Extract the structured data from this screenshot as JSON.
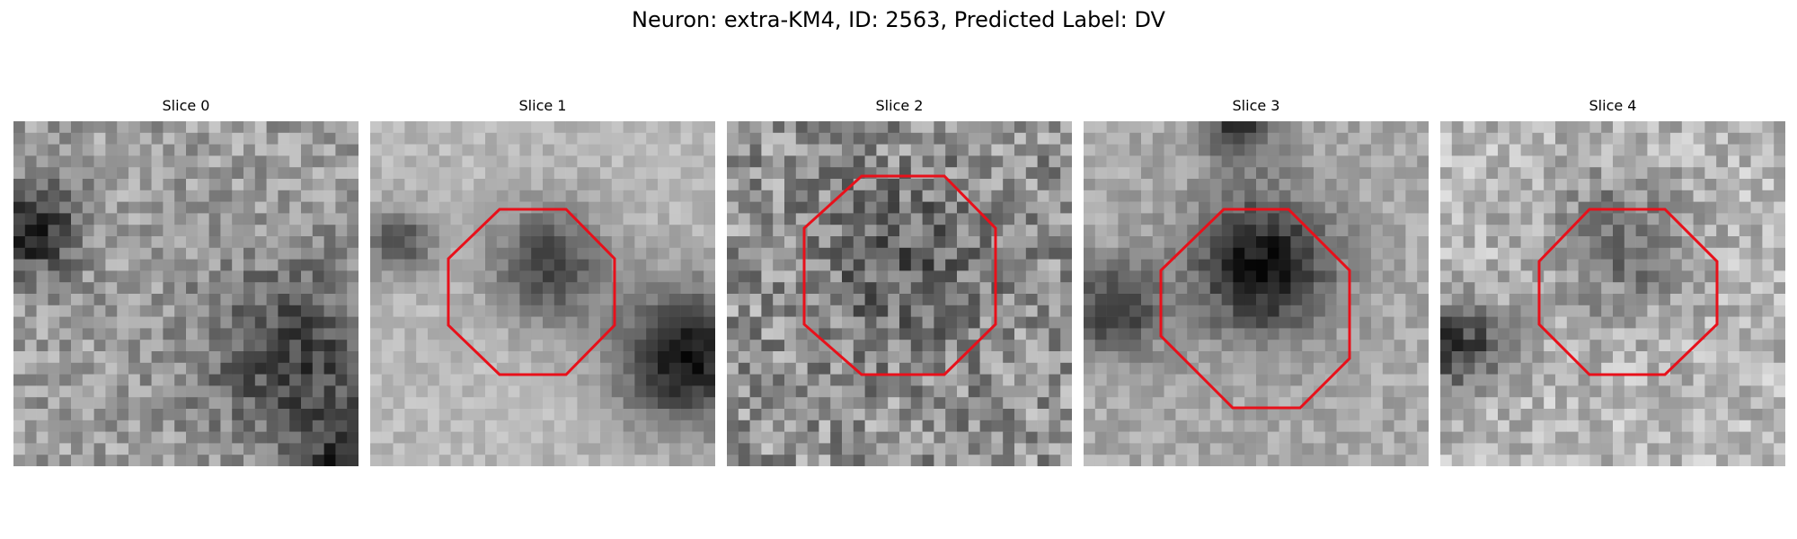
{
  "figure": {
    "title": "Neuron: extra-KM4, ID: 2563, Predicted Label: DV",
    "outline_color": "#e8101a"
  },
  "panels": [
    {
      "title": "Slice 0",
      "has_outline": false
    },
    {
      "title": "Slice 1",
      "has_outline": true
    },
    {
      "title": "Slice 2",
      "has_outline": true
    },
    {
      "title": "Slice 3",
      "has_outline": true
    },
    {
      "title": "Slice 4",
      "has_outline": true
    }
  ]
}
